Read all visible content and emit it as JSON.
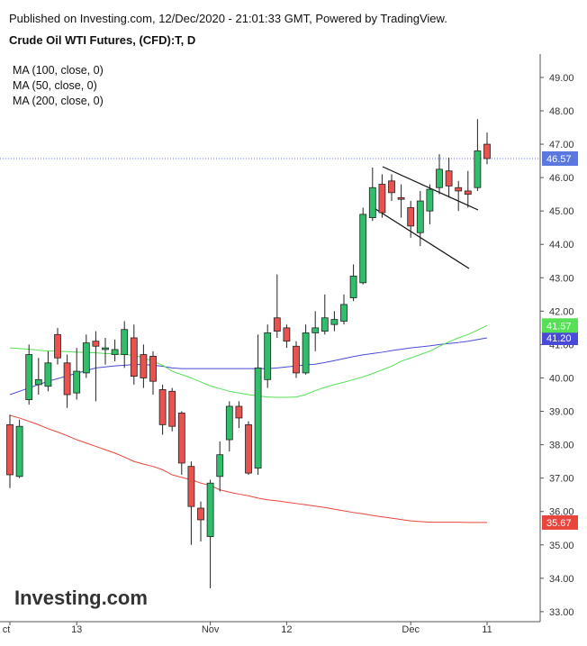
{
  "header": "Published on Investing.com, 12/Dec/2020 - 21:01:33 GMT, Powered by TradingView.",
  "logo": "Investing.com",
  "chart_data": {
    "type": "candlestick",
    "title": "Crude Oil WTI Futures, (CFD):T, D",
    "categories": [
      "ct",
      null,
      null,
      null,
      null,
      null,
      null,
      "13",
      null,
      null,
      null,
      null,
      null,
      null,
      null,
      null,
      null,
      null,
      null,
      null,
      null,
      "Nov",
      null,
      null,
      null,
      null,
      null,
      null,
      null,
      "12",
      null,
      null,
      null,
      null,
      null,
      null,
      null,
      null,
      null,
      null,
      null,
      null,
      "Dec",
      null,
      null,
      null,
      null,
      null,
      null,
      null,
      "11"
    ],
    "open": [
      38.6,
      37.05,
      39.35,
      39.8,
      39.75,
      41.3,
      40.45,
      39.55,
      40.15,
      41.1,
      40.85,
      40.7,
      40.7,
      41.2,
      40.7,
      40.65,
      39.65,
      39.6,
      38.95,
      37.35,
      36.1,
      35.25,
      37.05,
      38.15,
      39.15,
      38.6,
      37.3,
      39.95,
      41.8,
      41.5,
      40.95,
      40.15,
      41.35,
      41.4,
      41.6,
      41.7,
      42.4,
      42.85,
      44.8,
      45.8,
      45.9,
      45.4,
      45.1,
      44.35,
      45.0,
      45.7,
      46.2,
      45.7,
      45.6,
      45.7,
      47.0
    ],
    "high": [
      38.9,
      38.75,
      41.0,
      40.6,
      40.8,
      41.5,
      40.7,
      40.9,
      41.3,
      41.4,
      41.2,
      41.15,
      41.7,
      41.6,
      41.0,
      40.8,
      39.8,
      39.7,
      39.0,
      37.5,
      36.3,
      36.95,
      38.1,
      39.3,
      39.3,
      38.7,
      41.3,
      41.6,
      43.1,
      41.6,
      41.1,
      41.6,
      42.0,
      42.5,
      42.0,
      42.5,
      43.4,
      45.1,
      46.3,
      46.1,
      46.1,
      45.8,
      45.3,
      45.6,
      45.8,
      46.7,
      46.6,
      45.9,
      46.2,
      47.75,
      47.35
    ],
    "low": [
      36.7,
      37.0,
      39.2,
      39.5,
      39.6,
      40.4,
      39.1,
      39.35,
      40.0,
      39.3,
      40.4,
      40.5,
      40.3,
      39.8,
      39.7,
      39.5,
      38.3,
      38.4,
      37.1,
      35.0,
      35.1,
      33.7,
      36.6,
      37.8,
      38.5,
      37.1,
      37.1,
      39.7,
      41.2,
      40.9,
      40.0,
      40.1,
      40.8,
      41.3,
      41.4,
      41.6,
      42.3,
      42.8,
      44.7,
      44.8,
      45.3,
      44.8,
      44.2,
      43.95,
      44.6,
      45.5,
      45.4,
      45.0,
      45.1,
      45.6,
      46.4
    ],
    "close": [
      37.1,
      38.55,
      40.7,
      39.95,
      40.45,
      40.6,
      39.5,
      40.2,
      41.05,
      40.95,
      40.9,
      40.85,
      41.45,
      40.05,
      40.0,
      39.9,
      38.6,
      38.55,
      37.45,
      36.15,
      35.75,
      36.85,
      37.7,
      39.15,
      38.8,
      37.15,
      40.3,
      41.35,
      41.4,
      41.1,
      40.15,
      41.35,
      41.5,
      41.8,
      41.75,
      42.2,
      43.05,
      44.9,
      45.7,
      44.95,
      45.55,
      45.35,
      44.55,
      45.3,
      45.65,
      46.25,
      45.75,
      45.6,
      45.5,
      46.8,
      46.57
    ],
    "up_color": "#2fbf6a",
    "down_color": "#e8524f",
    "series": [
      {
        "name": "MA (100, close, 0)",
        "color": "#4a4ad8",
        "last_label": "41.20",
        "values": [
          39.5,
          39.6,
          39.7,
          39.8,
          39.9,
          39.98,
          40.06,
          40.14,
          40.22,
          40.3,
          40.33,
          40.36,
          40.38,
          40.4,
          40.4,
          40.38,
          40.35,
          40.3,
          40.28,
          40.28,
          40.28,
          40.28,
          40.28,
          40.28,
          40.28,
          40.28,
          40.28,
          40.28,
          40.3,
          40.33,
          40.36,
          40.39,
          40.41,
          40.46,
          40.52,
          40.58,
          40.64,
          40.69,
          40.73,
          40.77,
          40.82,
          40.86,
          40.9,
          40.93,
          40.96,
          41.0,
          41.03,
          41.06,
          41.1,
          41.15,
          41.2
        ]
      },
      {
        "name": "MA (50, close, 0)",
        "color": "#55e055",
        "last_label": "41.57",
        "values": [
          40.9,
          40.88,
          40.86,
          40.83,
          40.81,
          40.8,
          40.79,
          40.77,
          40.76,
          40.75,
          40.73,
          40.72,
          40.7,
          40.68,
          40.6,
          40.5,
          40.38,
          40.2,
          40.1,
          40.0,
          39.88,
          39.76,
          39.68,
          39.6,
          39.55,
          39.5,
          39.46,
          39.43,
          39.42,
          39.42,
          39.43,
          39.5,
          39.62,
          39.72,
          39.8,
          39.87,
          39.95,
          40.03,
          40.13,
          40.24,
          40.35,
          40.5,
          40.6,
          40.7,
          40.8,
          40.95,
          41.08,
          41.2,
          41.3,
          41.43,
          41.57
        ]
      },
      {
        "name": "MA (200, close, 0)",
        "color": "#e8453c",
        "last_label": "35.67",
        "values": [
          38.88,
          38.8,
          38.7,
          38.6,
          38.48,
          38.38,
          38.27,
          38.15,
          38.05,
          37.95,
          37.85,
          37.75,
          37.63,
          37.5,
          37.42,
          37.35,
          37.25,
          37.1,
          37.02,
          36.95,
          36.85,
          36.78,
          36.65,
          36.58,
          36.52,
          36.47,
          36.4,
          36.35,
          36.32,
          36.28,
          36.24,
          36.2,
          36.16,
          36.12,
          36.07,
          36.02,
          35.97,
          35.93,
          35.88,
          35.84,
          35.8,
          35.76,
          35.72,
          35.7,
          35.68,
          35.68,
          35.68,
          35.68,
          35.67,
          35.67,
          35.67
        ]
      }
    ],
    "price_line": {
      "value": 46.57,
      "label": "46.57",
      "color": "#5a78e0"
    },
    "ylim": [
      32.7,
      49.7
    ],
    "yticks": [
      {
        "value": 33,
        "label": "33.00"
      },
      {
        "value": 34,
        "label": "34.00"
      },
      {
        "value": 35,
        "label": "35.00"
      },
      {
        "value": 36,
        "label": "36.00"
      },
      {
        "value": 37,
        "label": "37.00"
      },
      {
        "value": 38,
        "label": "38.00"
      },
      {
        "value": 39,
        "label": "39.00"
      },
      {
        "value": 40,
        "label": "40.00"
      },
      {
        "value": 41,
        "label": "41.00"
      },
      {
        "value": 42,
        "label": "42.00"
      },
      {
        "value": 43,
        "label": "43.00"
      },
      {
        "value": 44,
        "label": "44.00"
      },
      {
        "value": 45,
        "label": "45.00"
      },
      {
        "value": 46,
        "label": "46.00"
      },
      {
        "value": 47,
        "label": "47.00"
      },
      {
        "value": 48,
        "label": "48.00"
      },
      {
        "value": 49,
        "label": "49.00"
      }
    ]
  }
}
